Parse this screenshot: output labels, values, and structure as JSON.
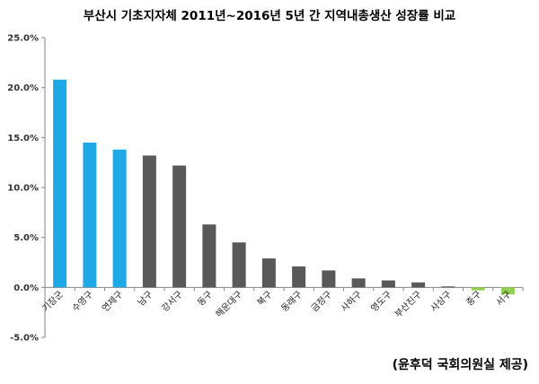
{
  "chart_data": {
    "type": "bar",
    "title": "부산시 기초지자체 2011년~2016년 5년 간 지역내총생산 성장률 비교",
    "source": "(윤후덕 국회의원실 제공)",
    "ylim": [
      -5,
      25
    ],
    "y_ticks": [
      "-5.0%",
      "0.0%",
      "5.0%",
      "10.0%",
      "15.0%",
      "20.0%",
      "25.0%"
    ],
    "grid": false,
    "categories": [
      "기장군",
      "수영구",
      "연제구",
      "남구",
      "강서구",
      "동구",
      "해운대구",
      "북구",
      "동래구",
      "금정구",
      "사하구",
      "영도구",
      "부산진구",
      "사상구",
      "중구",
      "서구"
    ],
    "values": [
      20.8,
      14.5,
      13.8,
      13.2,
      12.2,
      6.3,
      4.5,
      2.9,
      2.1,
      1.7,
      0.9,
      0.7,
      0.5,
      0.1,
      -0.3,
      -0.7
    ],
    "colors": [
      "#1FA8E6",
      "#1FA8E6",
      "#1FA8E6",
      "#595959",
      "#595959",
      "#595959",
      "#595959",
      "#595959",
      "#595959",
      "#595959",
      "#595959",
      "#595959",
      "#595959",
      "#595959",
      "#92D050",
      "#92D050"
    ]
  }
}
